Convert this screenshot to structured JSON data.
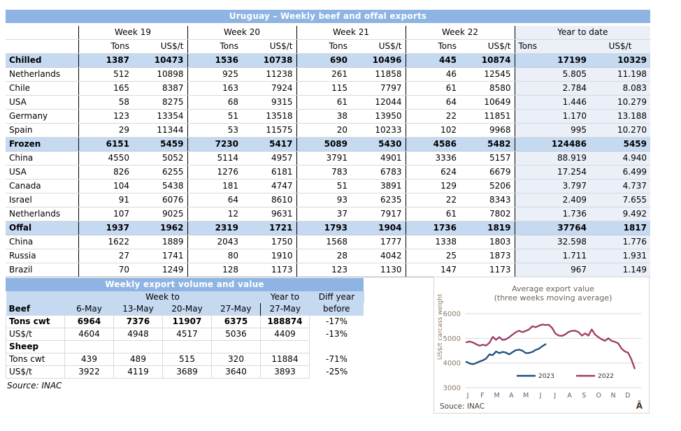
{
  "main_table": {
    "title": "Uruguay – Weekly beef and offal exports",
    "week_label": "Week",
    "week_numbers": [
      "19",
      "20",
      "21",
      "22"
    ],
    "ytd_label": "Year to date",
    "col_tons": "Tons",
    "col_usd": "US$/t",
    "rows": [
      {
        "label": "Chilled",
        "section": true,
        "values": [
          "1387",
          "10473",
          "1536",
          "10738",
          "690",
          "10496",
          "445",
          "10874",
          "17199",
          "10329"
        ]
      },
      {
        "label": "Netherlands",
        "section": false,
        "values": [
          "512",
          "10898",
          "925",
          "11238",
          "261",
          "11858",
          "46",
          "12545",
          "5.805",
          "11.198"
        ]
      },
      {
        "label": "Chile",
        "section": false,
        "values": [
          "165",
          "8387",
          "163",
          "7924",
          "115",
          "7797",
          "61",
          "8580",
          "2.784",
          "8.083"
        ]
      },
      {
        "label": "USA",
        "section": false,
        "values": [
          "58",
          "8275",
          "68",
          "9315",
          "61",
          "12044",
          "64",
          "10649",
          "1.446",
          "10.279"
        ]
      },
      {
        "label": "Germany",
        "section": false,
        "values": [
          "123",
          "13354",
          "51",
          "13518",
          "38",
          "13950",
          "22",
          "11851",
          "1.170",
          "13.188"
        ]
      },
      {
        "label": "Spain",
        "section": false,
        "values": [
          "29",
          "11344",
          "53",
          "11575",
          "20",
          "10233",
          "102",
          "9968",
          "995",
          "10.270"
        ]
      },
      {
        "label": "Frozen",
        "section": true,
        "values": [
          "6151",
          "5459",
          "7230",
          "5417",
          "5089",
          "5430",
          "4586",
          "5482",
          "124486",
          "5459"
        ]
      },
      {
        "label": "China",
        "section": false,
        "values": [
          "4550",
          "5052",
          "5114",
          "4957",
          "3791",
          "4901",
          "3336",
          "5157",
          "88.919",
          "4.940"
        ]
      },
      {
        "label": "USA",
        "section": false,
        "values": [
          "826",
          "6255",
          "1276",
          "6181",
          "783",
          "6783",
          "624",
          "6679",
          "17.254",
          "6.499"
        ]
      },
      {
        "label": "Canada",
        "section": false,
        "values": [
          "104",
          "5438",
          "181",
          "4747",
          "51",
          "3891",
          "129",
          "5206",
          "3.797",
          "4.737"
        ]
      },
      {
        "label": "Israel",
        "section": false,
        "values": [
          "91",
          "6076",
          "64",
          "8610",
          "93",
          "6235",
          "22",
          "8343",
          "2.409",
          "7.655"
        ]
      },
      {
        "label": "Netherlands",
        "section": false,
        "values": [
          "107",
          "9025",
          "12",
          "9631",
          "37",
          "7917",
          "61",
          "7802",
          "1.736",
          "9.492"
        ]
      },
      {
        "label": "Offal",
        "section": true,
        "values": [
          "1937",
          "1962",
          "2319",
          "1721",
          "1793",
          "1904",
          "1736",
          "1819",
          "37764",
          "1817"
        ]
      },
      {
        "label": "China",
        "section": false,
        "values": [
          "1622",
          "1889",
          "2043",
          "1750",
          "1568",
          "1777",
          "1338",
          "1803",
          "32.598",
          "1.776"
        ]
      },
      {
        "label": "Russia",
        "section": false,
        "values": [
          "27",
          "1741",
          "80",
          "1910",
          "28",
          "4042",
          "25",
          "1873",
          "1.711",
          "1.931"
        ]
      },
      {
        "label": "Brazil",
        "section": false,
        "values": [
          "70",
          "1249",
          "128",
          "1173",
          "123",
          "1130",
          "147",
          "1173",
          "967",
          "1.149"
        ]
      }
    ]
  },
  "weekly_table": {
    "title": "Weekly export volume and value",
    "header_week_to": "Week to",
    "header_year_to": "Year to",
    "header_diff": "Diff year",
    "col_labels": [
      "Beef",
      "6-May",
      "13-May",
      "20-May",
      "27-May",
      "27-May",
      "before"
    ],
    "rows": [
      {
        "label": "Tons cwt",
        "section": false,
        "bold": true,
        "values": [
          "6964",
          "7376",
          "11907",
          "6375",
          "188874",
          "-17%"
        ]
      },
      {
        "label": "US$/t",
        "section": false,
        "bold": false,
        "values": [
          "4604",
          "4948",
          "4517",
          "5036",
          "4409",
          "-13%"
        ]
      },
      {
        "label": "Sheep",
        "section": true,
        "bold": false,
        "values": [
          "",
          "",
          "",
          "",
          "",
          ""
        ]
      },
      {
        "label": "Tons cwt",
        "section": false,
        "bold": false,
        "values": [
          "439",
          "489",
          "515",
          "320",
          "11884",
          "-71%"
        ]
      },
      {
        "label": "US$/t",
        "section": false,
        "bold": false,
        "values": [
          "3922",
          "4119",
          "3689",
          "3640",
          "3893",
          "-25%"
        ]
      }
    ],
    "source": "Source: INAC"
  },
  "chart": {
    "title_line1": "Average export  value",
    "title_line2": "(three weeks moving average)",
    "ylabel": "US$/t carcass weight",
    "source": "Souce: INAC",
    "corner_glyph": "Ā"
  },
  "chart_data": {
    "type": "line",
    "title": "Average export value (three weeks moving average)",
    "ylabel": "US$/t carcass weight",
    "ylim": [
      3000,
      6000
    ],
    "yticks": [
      6000,
      5000,
      4000,
      3000
    ],
    "x_tick_labels": [
      "J",
      "F",
      "M",
      "A",
      "M",
      "J",
      "J",
      "A",
      "S",
      "O",
      "N",
      "D"
    ],
    "x_unit": "week_of_year",
    "grid": true,
    "legend_position": "inside-bottom",
    "series": [
      {
        "name": "2023",
        "color": "#1f4e79",
        "values": [
          4050,
          3980,
          3950,
          4000,
          4060,
          4110,
          4180,
          4350,
          4320,
          4470,
          4400,
          4450,
          4420,
          4350,
          4440,
          4520,
          4540,
          4500,
          4400,
          4410,
          4450,
          4530,
          4580,
          4680,
          4760
        ]
      },
      {
        "name": "2022",
        "color": "#9e3a64",
        "values": [
          4840,
          4870,
          4830,
          4760,
          4700,
          4740,
          4710,
          4820,
          5060,
          4940,
          5050,
          4930,
          4960,
          5050,
          5150,
          5250,
          5310,
          5250,
          5300,
          5360,
          5490,
          5450,
          5510,
          5560,
          5540,
          5550,
          5420,
          5190,
          5110,
          5100,
          5160,
          5260,
          5300,
          5310,
          5250,
          5110,
          5200,
          5110,
          5360,
          5150,
          5050,
          4960,
          4900,
          5000,
          4900,
          4860,
          4800,
          4590,
          4470,
          4420,
          4150,
          3780
        ]
      }
    ],
    "colors": {
      "grid": "#d9d9d9",
      "tick_text": "#8a7660",
      "title_text": "#6f6152",
      "xletter_text": "#52627f",
      "source_text": "#4d3f30"
    }
  }
}
